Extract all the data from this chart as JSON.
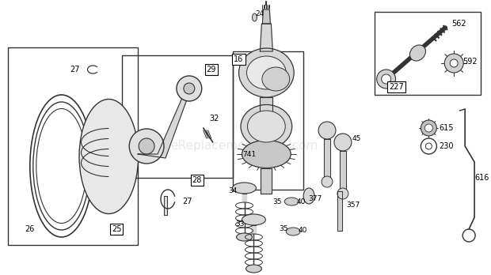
{
  "bg_color": "#ffffff",
  "line_color": "#333333",
  "watermark": "eReplacementParts.com",
  "watermark_color": "#cccccc",
  "watermark_alpha": 0.45,
  "fig_w": 6.2,
  "fig_h": 3.48,
  "dpi": 100
}
